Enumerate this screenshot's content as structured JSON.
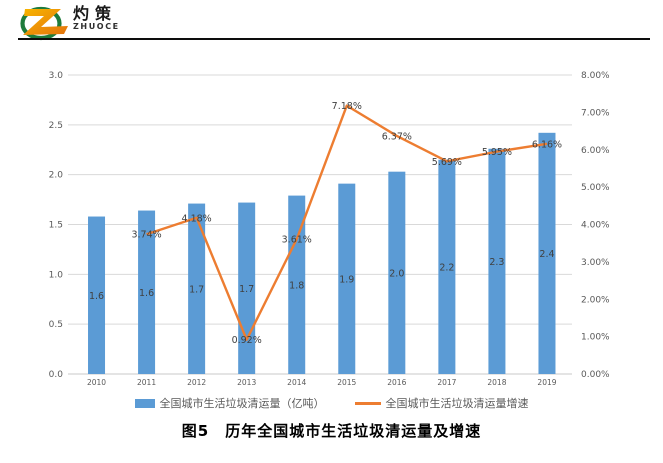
{
  "logo": {
    "name_cn": "灼策",
    "name_en": "ZHUOCE"
  },
  "chart_data": {
    "type": "bar+line combo",
    "title": "图5　历年全国城市生活垃圾清运量及增速",
    "categories": [
      "2010",
      "2011",
      "2012",
      "2013",
      "2014",
      "2015",
      "2016",
      "2017",
      "2018",
      "2019"
    ],
    "series": [
      {
        "name": "全国城市生活垃圾清运量（亿吨）",
        "type": "bar",
        "axis": "left",
        "color": "#5B9BD5",
        "values": [
          1.58,
          1.64,
          1.71,
          1.72,
          1.79,
          1.91,
          2.03,
          2.15,
          2.26,
          2.42
        ],
        "labels": [
          "1.6",
          "1.6",
          "1.7",
          "1.7",
          "1.8",
          "1.9",
          "2.0",
          "2.2",
          "2.3",
          "2.4"
        ]
      },
      {
        "name": "全国城市生活垃圾清运量增速",
        "type": "line",
        "axis": "right",
        "color": "#ED7D31",
        "values": [
          null,
          3.74,
          4.18,
          0.92,
          3.61,
          7.18,
          6.37,
          5.69,
          5.95,
          6.16
        ],
        "labels": [
          null,
          "3.74%",
          "4.18%",
          "0.92%",
          "3.61%",
          "7.18%",
          "6.37%",
          "5.69%",
          "5.95%",
          "6.16%"
        ]
      }
    ],
    "left_axis": {
      "min": 0,
      "max": 3.0,
      "step": 0.5,
      "ticks": [
        "0.0",
        "0.5",
        "1.0",
        "1.5",
        "2.0",
        "2.5",
        "3.0"
      ]
    },
    "right_axis": {
      "min": 0,
      "max": 8.0,
      "step": 1.0,
      "ticks": [
        "0.00%",
        "1.00%",
        "2.00%",
        "3.00%",
        "4.00%",
        "5.00%",
        "6.00%",
        "7.00%",
        "8.00%"
      ]
    },
    "grid": true,
    "legend_position": "bottom",
    "colors": {
      "data_label": "#404040",
      "tick_label": "#595959",
      "gridline": "#D9D9D9",
      "axis_line": "#C9C9C9"
    }
  }
}
